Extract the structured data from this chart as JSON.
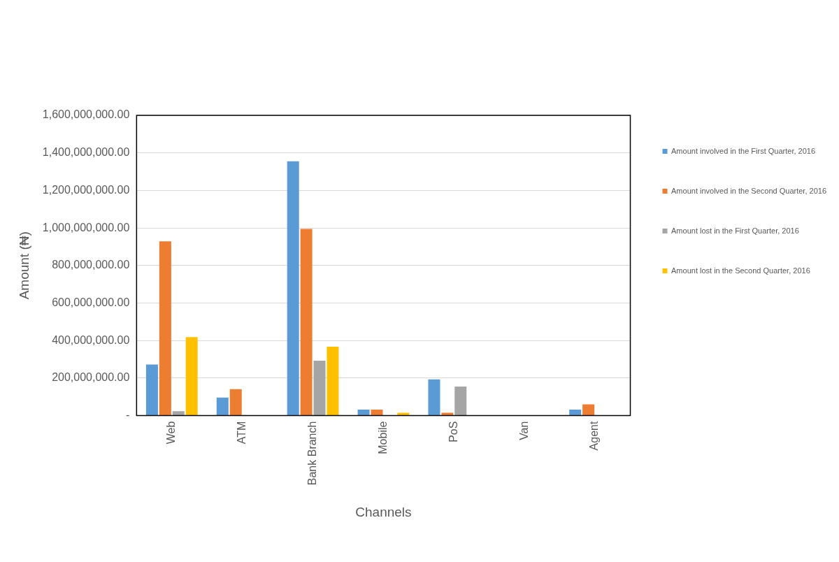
{
  "chart_data": {
    "type": "bar",
    "xlabel": "Channels",
    "ylabel": "Amount (₦)",
    "categories": [
      "Web",
      "ATM",
      "Bank Branch",
      "Mobile",
      "PoS",
      "Van",
      "Agent"
    ],
    "series": [
      {
        "name": "Amount involved in the First Quarter, 2016",
        "color": "#5b9bd5",
        "values": [
          272000000,
          96000000,
          1355000000,
          32000000,
          193000000,
          0,
          32000000
        ]
      },
      {
        "name": "Amount involved in the Second Quarter, 2016",
        "color": "#ed7d31",
        "values": [
          929000000,
          141000000,
          995000000,
          32000000,
          15000000,
          0,
          60000000
        ]
      },
      {
        "name": "Amount lost in the First Quarter, 2016",
        "color": "#a5a5a5",
        "values": [
          24000000,
          0,
          293000000,
          2000000,
          155000000,
          0,
          0
        ]
      },
      {
        "name": "Amount lost in the Second Quarter, 2016",
        "color": "#ffc000",
        "values": [
          418000000,
          0,
          367000000,
          15000000,
          0,
          0,
          0
        ]
      }
    ],
    "ylim": [
      0,
      1600000000
    ],
    "yticks": [
      {
        "value": 0,
        "label": "-"
      },
      {
        "value": 200000000,
        "label": "200,000,000.00"
      },
      {
        "value": 400000000,
        "label": "400,000,000.00"
      },
      {
        "value": 600000000,
        "label": "600,000,000.00"
      },
      {
        "value": 800000000,
        "label": "800,000,000.00"
      },
      {
        "value": 1000000000,
        "label": "1,000,000,000.00"
      },
      {
        "value": 1200000000,
        "label": "1,200,000,000.00"
      },
      {
        "value": 1400000000,
        "label": "1,400,000,000.00"
      },
      {
        "value": 1600000000,
        "label": "1,600,000,000.00"
      }
    ],
    "grid": "y",
    "legend": "right"
  }
}
